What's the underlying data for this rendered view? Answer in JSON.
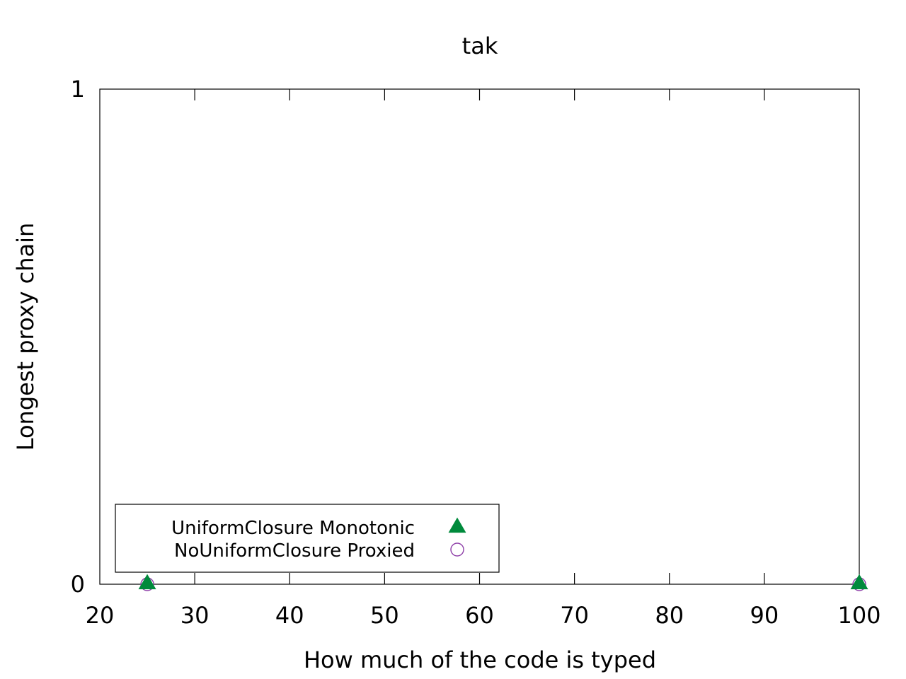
{
  "chart_data": {
    "type": "scatter",
    "title": "tak",
    "xlabel": "How much of the code is typed",
    "ylabel": "Longest proxy chain",
    "xlim": [
      20,
      100
    ],
    "ylim": [
      0,
      1
    ],
    "x_ticks": [
      20,
      30,
      40,
      50,
      60,
      70,
      80,
      90,
      100
    ],
    "y_ticks": [
      0,
      1
    ],
    "grid": false,
    "legend_position": "bottom-left",
    "series": [
      {
        "name": "UniformClosure Monotonic",
        "marker": "filled-triangle",
        "color": "#008a3c",
        "points": [
          {
            "x": 25,
            "y": 0
          },
          {
            "x": 100,
            "y": 0
          }
        ]
      },
      {
        "name": "NoUniformClosure Proxied",
        "marker": "open-circle",
        "color": "#8e3fa8",
        "points": [
          {
            "x": 25,
            "y": 0
          },
          {
            "x": 100,
            "y": 0
          }
        ]
      }
    ]
  }
}
